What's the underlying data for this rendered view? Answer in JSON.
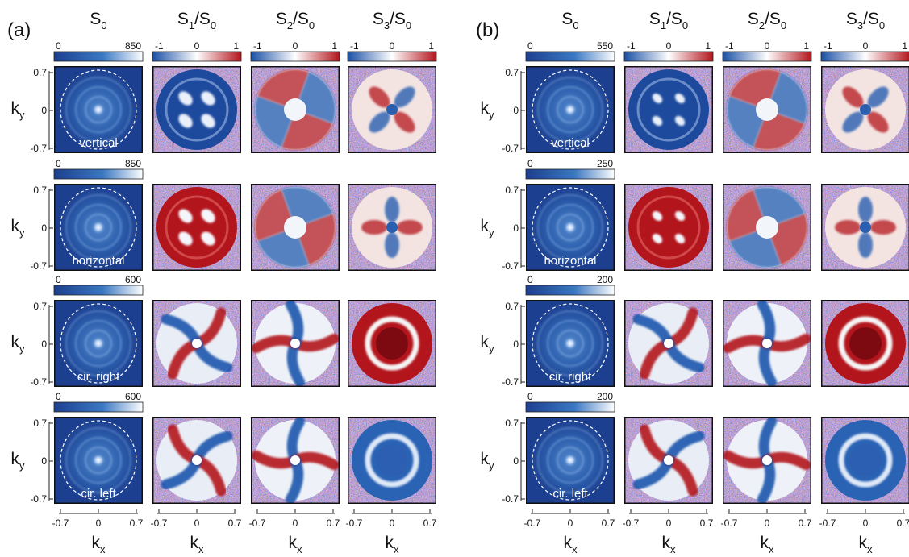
{
  "panels": [
    {
      "letter": "(a)",
      "columns": [
        {
          "label": "S",
          "sub": "0",
          "tail": ""
        },
        {
          "label": "S",
          "sub": "1",
          "tail": "/S",
          "sub2": "0"
        },
        {
          "label": "S",
          "sub": "2",
          "tail": "/S",
          "sub2": "0"
        },
        {
          "label": "S",
          "sub": "3",
          "tail": "/S",
          "sub2": "0"
        }
      ],
      "rows": [
        {
          "polarization": "vertical",
          "s0_max": "850",
          "pattern": "vertical"
        },
        {
          "polarization": "horizontal",
          "s0_max": "850",
          "pattern": "horizontal"
        },
        {
          "polarization": "cir. right",
          "s0_max": "600",
          "pattern": "circular"
        },
        {
          "polarization": "cir. left",
          "s0_max": "600",
          "pattern": "circular"
        }
      ]
    },
    {
      "letter": "(b)",
      "columns": [
        {
          "label": "S",
          "sub": "0",
          "tail": ""
        },
        {
          "label": "S",
          "sub": "1",
          "tail": "/S",
          "sub2": "0"
        },
        {
          "label": "S",
          "sub": "2",
          "tail": "/S",
          "sub2": "0"
        },
        {
          "label": "S",
          "sub": "3",
          "tail": "/S",
          "sub2": "0"
        }
      ],
      "rows": [
        {
          "polarization": "vertical",
          "s0_max": "550",
          "pattern": "vertical"
        },
        {
          "polarization": "horizontal",
          "s0_max": "250",
          "pattern": "horizontal"
        },
        {
          "polarization": "cir. right",
          "s0_max": "200",
          "pattern": "circular"
        },
        {
          "polarization": "cir. left",
          "s0_max": "200",
          "pattern": "circular"
        }
      ]
    }
  ],
  "colorbars": {
    "s0_min": "0",
    "stokes_ticks": [
      "-1",
      "0",
      "1"
    ]
  },
  "axes": {
    "ky_label": "k",
    "ky_sub": "y",
    "kx_label": "k",
    "kx_sub": "x",
    "ky_ticks": [
      "0.7",
      "0",
      "-0.7"
    ],
    "kx_ticks": [
      "-0.7",
      "0",
      "0.7"
    ]
  },
  "colors": {
    "deep_blue": "#1d3f8f",
    "mid_blue": "#3a78c2",
    "white": "#f4f4f4",
    "red": "#b3151c",
    "dark_red": "#7d0a10",
    "noise_bg": "#b8b0c2",
    "frame": "#111111"
  }
}
